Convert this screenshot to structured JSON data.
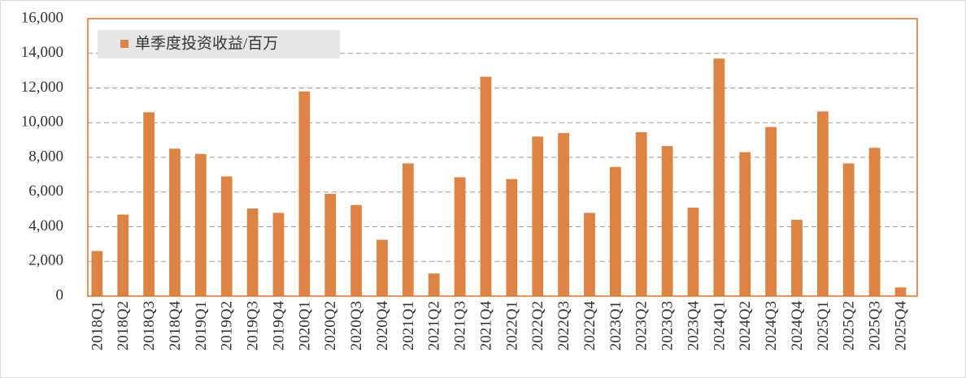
{
  "chart_data": {
    "type": "bar",
    "legend_label": "单季度投资收益/百万",
    "categories": [
      "2018Q1",
      "2018Q2",
      "2018Q3",
      "2018Q4",
      "2019Q1",
      "2019Q2",
      "2019Q3",
      "2019Q4",
      "2020Q1",
      "2020Q2",
      "2020Q3",
      "2020Q4",
      "2021Q1",
      "2021Q2",
      "2021Q3",
      "2021Q4",
      "2022Q1",
      "2022Q2",
      "2022Q3",
      "2022Q4",
      "2023Q1",
      "2023Q2",
      "2023Q3",
      "2023Q4",
      "2024Q1",
      "2024Q2",
      "2024Q3",
      "2024Q4",
      "2025Q1",
      "2025Q2",
      "2025Q3",
      "2025Q4"
    ],
    "values": [
      2600,
      4700,
      10600,
      8500,
      8200,
      6900,
      5050,
      4800,
      11800,
      5900,
      5250,
      3250,
      7650,
      1300,
      6850,
      12650,
      6750,
      9200,
      9400,
      4800,
      7450,
      9450,
      8650,
      5100,
      13700,
      8300,
      9750,
      4400,
      10650,
      7650,
      8550,
      500
    ],
    "color": "#dd8444",
    "ylim": [
      0,
      16000
    ],
    "yticks": [
      0,
      {
        "value": 2000,
        "label": "2,000"
      },
      {
        "value": 4000,
        "label": "4,000"
      },
      {
        "value": 6000,
        "label": "6,000"
      },
      {
        "value": 8000,
        "label": "8,000"
      },
      {
        "value": 10000,
        "label": "10,000"
      },
      {
        "value": 12000,
        "label": "12,000"
      },
      {
        "value": 14000,
        "label": "14,000"
      },
      {
        "value": 16000,
        "label": "16,000"
      }
    ],
    "grid": true
  }
}
